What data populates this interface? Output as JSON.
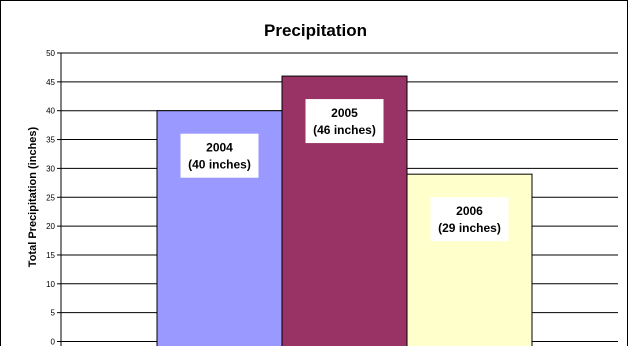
{
  "chart_data": {
    "type": "bar",
    "title": "Precipitation",
    "xlabel": "",
    "ylabel": "Total Precipitation (inches)",
    "ylim": [
      0,
      50
    ],
    "ytick_step": 5,
    "grid": true,
    "categories": [
      "2004",
      "2005",
      "2006"
    ],
    "values": [
      40,
      46,
      29
    ],
    "data_labels": [
      [
        "2004",
        "(40 inches)"
      ],
      [
        "2005",
        "(46 inches)"
      ],
      [
        "2006",
        "(29 inches)"
      ]
    ],
    "colors": [
      "#9999FF",
      "#993366",
      "#FFFFCC"
    ]
  }
}
